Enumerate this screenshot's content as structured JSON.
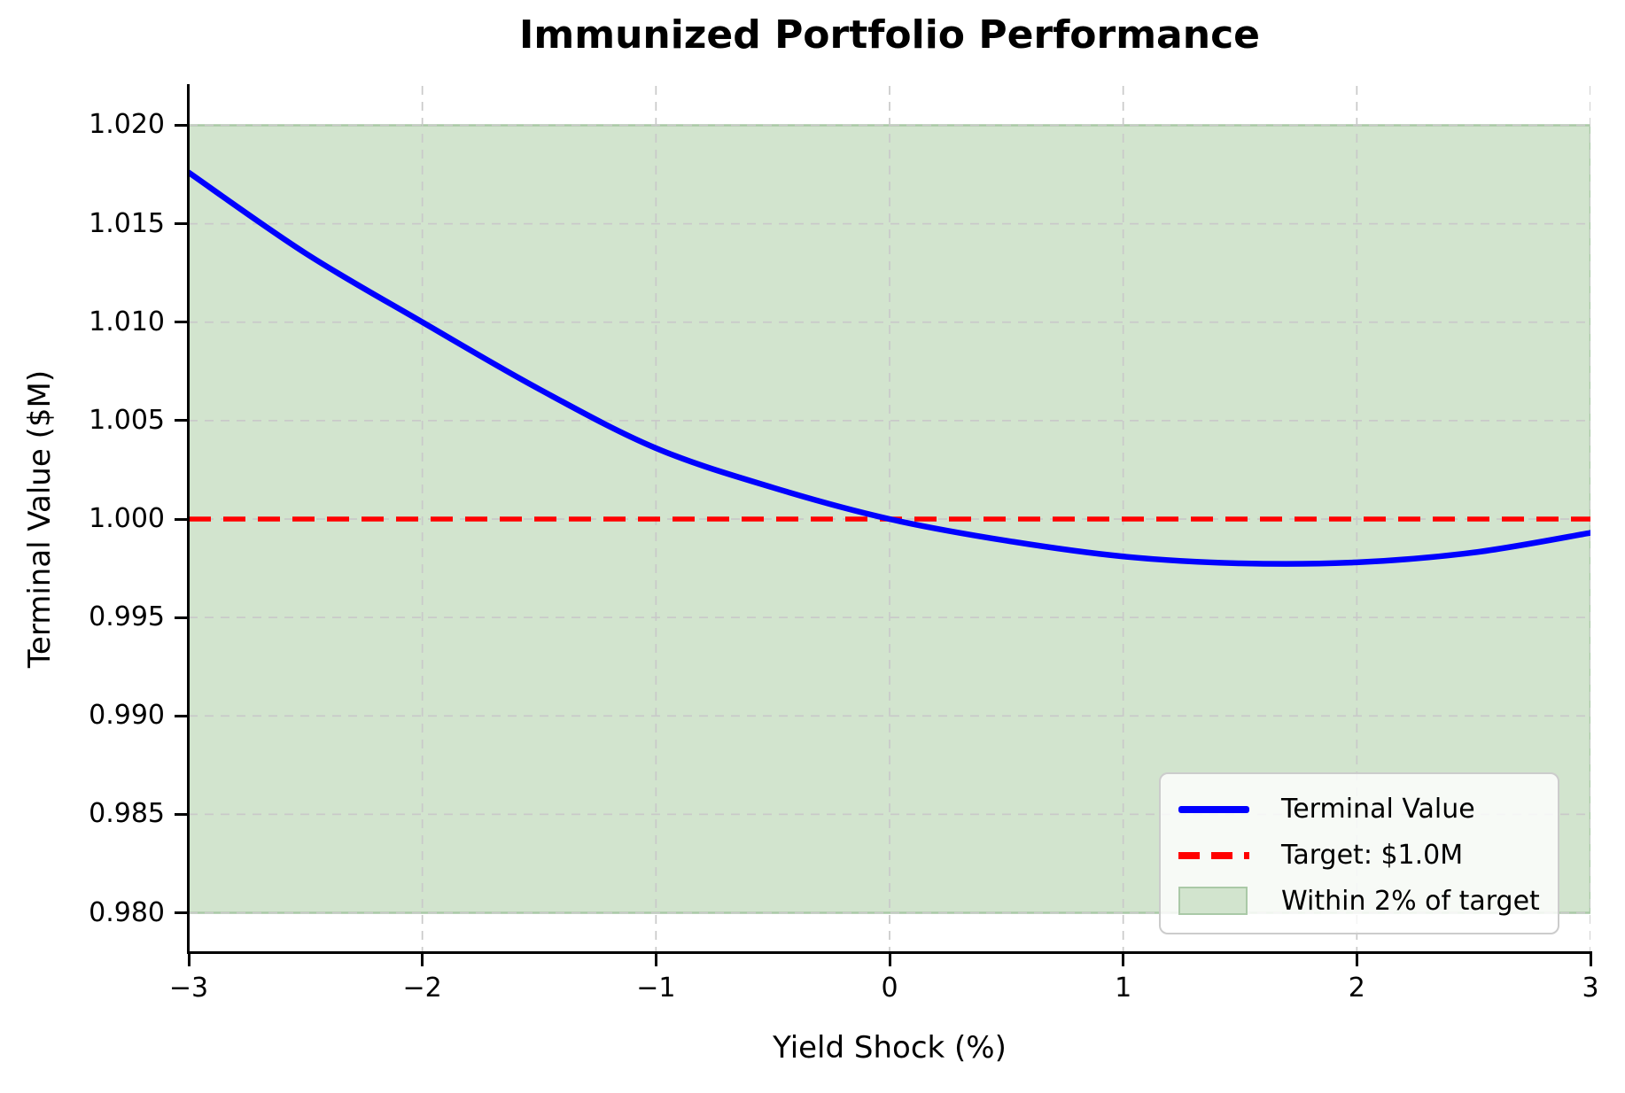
{
  "title": "Immunized Portfolio Performance",
  "chart_data": {
    "type": "line",
    "title": "Immunized Portfolio Performance",
    "xlabel": "Yield Shock (%)",
    "ylabel": "Terminal Value ($M)",
    "xlim": [
      -3,
      3
    ],
    "ylim": [
      0.978,
      1.022
    ],
    "grid": true,
    "grid_style": "dashed",
    "legend_position": "lower right",
    "x_ticks": [
      {
        "v": -3,
        "label": "−3"
      },
      {
        "v": -2,
        "label": "−2"
      },
      {
        "v": -1,
        "label": "−1"
      },
      {
        "v": 0,
        "label": "0"
      },
      {
        "v": 1,
        "label": "1"
      },
      {
        "v": 2,
        "label": "2"
      },
      {
        "v": 3,
        "label": "3"
      }
    ],
    "y_ticks": [
      {
        "v": 0.98,
        "label": "0.980"
      },
      {
        "v": 0.985,
        "label": "0.985"
      },
      {
        "v": 0.99,
        "label": "0.990"
      },
      {
        "v": 0.995,
        "label": "0.995"
      },
      {
        "v": 1.0,
        "label": "1.000"
      },
      {
        "v": 1.005,
        "label": "1.005"
      },
      {
        "v": 1.01,
        "label": "1.010"
      },
      {
        "v": 1.015,
        "label": "1.015"
      },
      {
        "v": 1.02,
        "label": "1.020"
      }
    ],
    "series": [
      {
        "name": "Terminal Value",
        "type": "line",
        "color": "#0000ff",
        "line_width": 6.5,
        "x": [
          -3,
          -2.5,
          -2,
          -1.5,
          -1,
          -0.5,
          0,
          0.5,
          1,
          1.5,
          2,
          2.5,
          3
        ],
        "y": [
          1.0176,
          1.0135,
          1.01,
          1.0066,
          1.0036,
          1.0016,
          1.0,
          0.9989,
          0.9981,
          0.99775,
          0.9978,
          0.9983,
          0.9993
        ]
      },
      {
        "name": "Target: $1.0M",
        "type": "hline",
        "color": "#ff0000",
        "style": "dashed",
        "line_width": 5.5,
        "y": 1.0
      },
      {
        "name": "Within 2% of target",
        "type": "band",
        "fill": "#d2e4ce",
        "edge": "#aac9a7",
        "y_range": [
          0.98,
          1.02
        ]
      }
    ],
    "grid_color": "#c9c9c9"
  },
  "colors": {
    "spine": "#000000",
    "background": "#ffffff"
  }
}
